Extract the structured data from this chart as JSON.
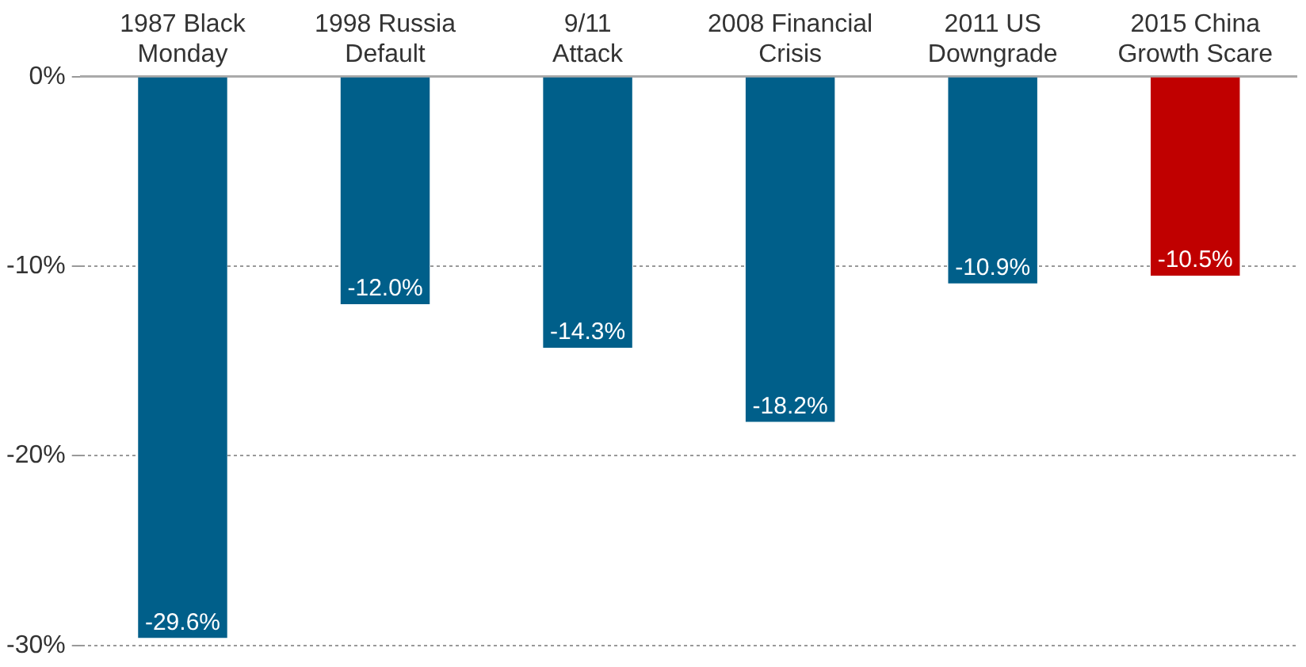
{
  "chart_data": {
    "type": "bar",
    "categories": [
      "1987 Black Monday",
      "1998 Russia Default",
      "9/11 Attack",
      "2008 Financial Crisis",
      "2011 US Downgrade",
      "2015 China Growth Scare"
    ],
    "values": [
      -29.6,
      -12.0,
      -14.3,
      -18.2,
      -10.9,
      -10.5
    ],
    "colors": [
      "#005f8a",
      "#005f8a",
      "#005f8a",
      "#005f8a",
      "#005f8a",
      "#c00000"
    ],
    "value_labels": [
      "-29.6%",
      "-12.0%",
      "-14.3%",
      "-18.2%",
      "-10.9%",
      "-10.5%"
    ],
    "ylim": [
      -30,
      0
    ],
    "yticks": [
      {
        "value": 0,
        "label": "0%"
      },
      {
        "value": -10,
        "label": "-10%"
      },
      {
        "value": -20,
        "label": "-20%"
      },
      {
        "value": -30,
        "label": "-30%"
      }
    ],
    "grid": "y",
    "legend": false
  }
}
